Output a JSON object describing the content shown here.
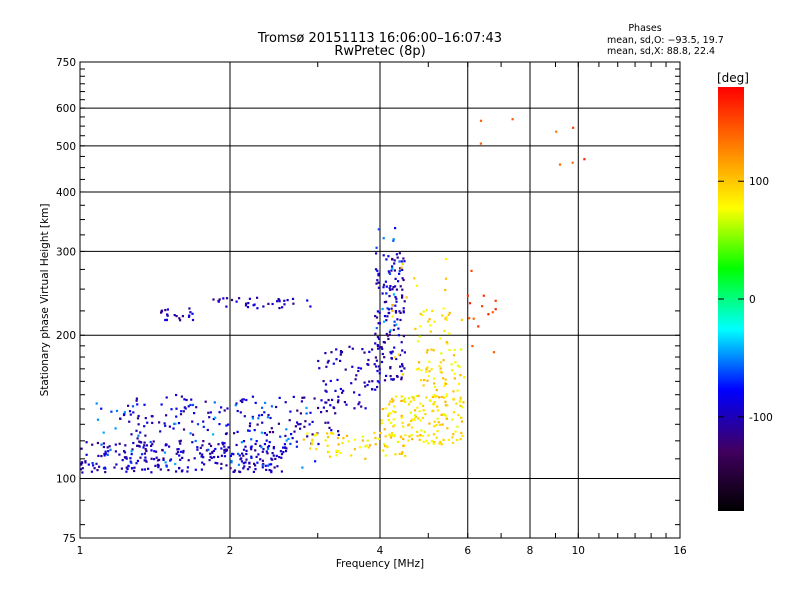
{
  "chart_data": {
    "type": "scatter",
    "title": "Tromsø 20151113 16:06:00–16:07:43",
    "subtitle": "RwPretec (8p)",
    "xlabel": "Frequency [MHz]",
    "ylabel": "Stationary phase Virtual Height [km]",
    "x_scale": "log",
    "y_scale": "log",
    "xlim": [
      1,
      16
    ],
    "ylim": [
      75,
      750
    ],
    "x_ticks": [
      1,
      2,
      4,
      6,
      8,
      10,
      16
    ],
    "y_ticks": [
      75,
      100,
      200,
      300,
      400,
      500,
      600,
      750
    ],
    "grid": true,
    "phase_box": {
      "title": "Phases",
      "line_o": "mean, sd,O: −93.5, 19.7",
      "line_x": "mean, sd,X: 88.8, 22.4"
    },
    "colorbar": {
      "label": "[deg]",
      "range": [
        -180,
        180
      ],
      "ticks": [
        100,
        0,
        -100
      ],
      "colors": [
        "#ff0000",
        "#ff8000",
        "#ffff00",
        "#00ff00",
        "#00ffff",
        "#0000ff",
        "#400060",
        "#000000"
      ]
    },
    "series": [
      {
        "phase_deg": -100,
        "clusters": [
          {
            "x": [
              1.0,
              2.6
            ],
            "y": [
              103,
              120
            ],
            "n": 260
          },
          {
            "x": [
              1.2,
              3.4
            ],
            "y": [
              118,
              150
            ],
            "n": 150
          },
          {
            "x": [
              1.45,
              1.7
            ],
            "y": [
              215,
              228
            ],
            "n": 22
          },
          {
            "x": [
              1.8,
              2.9
            ],
            "y": [
              228,
              240
            ],
            "n": 35
          },
          {
            "x": [
              3.0,
              4.0
            ],
            "y": [
              140,
              190
            ],
            "n": 70
          },
          {
            "x": [
              3.9,
              4.5
            ],
            "y": [
              160,
              300
            ],
            "n": 140
          }
        ]
      },
      {
        "phase_deg": -60,
        "clusters": [
          {
            "x": [
              1.05,
              3.0
            ],
            "y": [
              105,
              145
            ],
            "n": 80
          },
          {
            "x": [
              3.9,
              4.4
            ],
            "y": [
              200,
              340
            ],
            "n": 20
          }
        ]
      },
      {
        "phase_deg": 90,
        "clusters": [
          {
            "x": [
              2.8,
              4.5
            ],
            "y": [
              110,
              125
            ],
            "n": 70
          },
          {
            "x": [
              4.0,
              5.9
            ],
            "y": [
              118,
              150
            ],
            "n": 150
          },
          {
            "x": [
              4.8,
              5.9
            ],
            "y": [
              150,
              230
            ],
            "n": 70
          },
          {
            "x": [
              4.2,
              5.6
            ],
            "y": [
              140,
              290
            ],
            "n": 25
          }
        ]
      },
      {
        "phase_deg": 150,
        "clusters": [
          {
            "x": [
              6.0,
              6.9
            ],
            "y": [
              180,
              280
            ],
            "n": 14
          },
          {
            "x": [
              6.1,
              10.5
            ],
            "y": [
              420,
              600
            ],
            "n": 8
          }
        ]
      }
    ]
  }
}
